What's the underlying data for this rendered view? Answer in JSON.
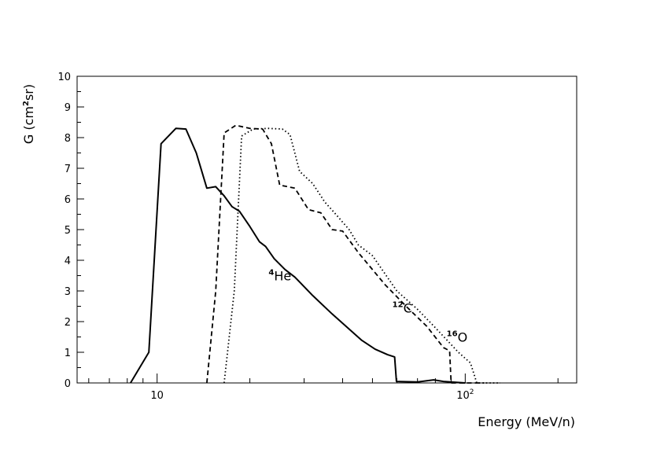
{
  "chart_data": {
    "type": "line",
    "title": "",
    "xlabel": "Energy (MeV/n)",
    "ylabel_main": "G (cm",
    "ylabel_sup": "2",
    "ylabel_tail": "sr)",
    "x_scale": "log",
    "xlim": [
      5.5,
      230
    ],
    "ylim": [
      0,
      10
    ],
    "x_ticks": [
      {
        "value": 10,
        "label": "10"
      },
      {
        "value": 100,
        "label": "10",
        "sup": "2"
      }
    ],
    "y_ticks": [
      0,
      1,
      2,
      3,
      4,
      5,
      6,
      7,
      8,
      9,
      10
    ],
    "grid": false,
    "series": [
      {
        "key": "he4",
        "label_mass": "4",
        "label_elem": "He",
        "label_at": {
          "x": 23,
          "y": 3.35
        },
        "style": "solid",
        "points": [
          [
            8.2,
            0
          ],
          [
            9.4,
            1.0
          ],
          [
            10.3,
            7.8
          ],
          [
            11.5,
            8.3
          ],
          [
            12.4,
            8.28
          ],
          [
            13.4,
            7.5
          ],
          [
            14.5,
            6.35
          ],
          [
            15.5,
            6.4
          ],
          [
            16.5,
            6.1
          ],
          [
            17.5,
            5.75
          ],
          [
            18.5,
            5.6
          ],
          [
            20,
            5.1
          ],
          [
            21.5,
            4.6
          ],
          [
            22.5,
            4.45
          ],
          [
            24,
            4.05
          ],
          [
            26,
            3.7
          ],
          [
            28,
            3.45
          ],
          [
            32,
            2.85
          ],
          [
            37,
            2.25
          ],
          [
            41,
            1.85
          ],
          [
            46,
            1.4
          ],
          [
            51,
            1.1
          ],
          [
            56,
            0.92
          ],
          [
            59,
            0.85
          ],
          [
            59.8,
            0.05
          ],
          [
            70,
            0.03
          ],
          [
            79,
            0.1
          ],
          [
            85,
            0.05
          ],
          [
            100,
            0
          ]
        ]
      },
      {
        "key": "c12",
        "label_mass": "12",
        "label_elem": "C",
        "label_at": {
          "x": 58,
          "y": 2.3
        },
        "style": "dashed",
        "points": [
          [
            14.5,
            0
          ],
          [
            15.5,
            3.0
          ],
          [
            16.5,
            8.15
          ],
          [
            18,
            8.4
          ],
          [
            20,
            8.3
          ],
          [
            22,
            8.28
          ],
          [
            23.5,
            7.8
          ],
          [
            25,
            6.45
          ],
          [
            28,
            6.35
          ],
          [
            31,
            5.65
          ],
          [
            34,
            5.55
          ],
          [
            37,
            5.0
          ],
          [
            40,
            4.95
          ],
          [
            45,
            4.25
          ],
          [
            55,
            3.2
          ],
          [
            65,
            2.45
          ],
          [
            75,
            1.85
          ],
          [
            85,
            1.15
          ],
          [
            89,
            1.05
          ],
          [
            90,
            0
          ],
          [
            115,
            0
          ]
        ]
      },
      {
        "key": "o16",
        "label_mass": "16",
        "label_elem": "O",
        "label_at": {
          "x": 87,
          "y": 1.35
        },
        "style": "dotted",
        "points": [
          [
            16.5,
            0
          ],
          [
            17.8,
            3.0
          ],
          [
            18.8,
            8.05
          ],
          [
            20.5,
            8.28
          ],
          [
            23,
            8.3
          ],
          [
            25.5,
            8.28
          ],
          [
            27,
            8.1
          ],
          [
            29,
            6.9
          ],
          [
            32,
            6.5
          ],
          [
            35,
            5.9
          ],
          [
            38,
            5.5
          ],
          [
            42,
            5.0
          ],
          [
            45,
            4.5
          ],
          [
            50,
            4.15
          ],
          [
            60,
            3.0
          ],
          [
            70,
            2.4
          ],
          [
            80,
            1.8
          ],
          [
            95,
            1.0
          ],
          [
            104,
            0.65
          ],
          [
            109,
            0
          ],
          [
            130,
            0
          ]
        ]
      }
    ]
  }
}
